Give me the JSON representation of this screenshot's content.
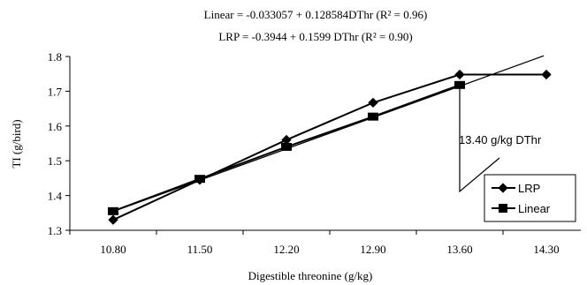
{
  "chart_data": {
    "type": "line",
    "equations": [
      "Linear = -0.033057 + 0.128584DThr (R² = 0.96)",
      "LRP = -0.3944 + 0.1599 DThr (R² = 0.90)"
    ],
    "xlabel": "Digestible threonine (g/kg)",
    "ylabel": "TI (g/bird)",
    "categories": [
      "10.80",
      "11.50",
      "12.20",
      "12.90",
      "13.60",
      "14.30"
    ],
    "x": [
      10.8,
      11.5,
      12.2,
      12.9,
      13.6,
      14.3
    ],
    "y_ticks": [
      "1.3",
      "1.4",
      "1.5",
      "1.6",
      "1.7",
      "1.8"
    ],
    "ylim": [
      1.3,
      1.8
    ],
    "series": [
      {
        "name": "LRP",
        "marker": "diamond",
        "values": [
          1.33,
          1.445,
          1.56,
          1.667,
          1.748,
          1.748
        ]
      },
      {
        "name": "Linear",
        "marker": "square",
        "values": [
          1.355,
          1.448,
          1.54,
          1.627,
          1.718,
          null
        ]
      }
    ],
    "trend_line": {
      "x": [
        10.8,
        14.28
      ],
      "y": [
        1.354,
        1.802
      ]
    },
    "annotation": {
      "text": "13.40 g/kg DThr",
      "x": 13.6
    },
    "legend_position": "bottom-right",
    "grid": false
  }
}
